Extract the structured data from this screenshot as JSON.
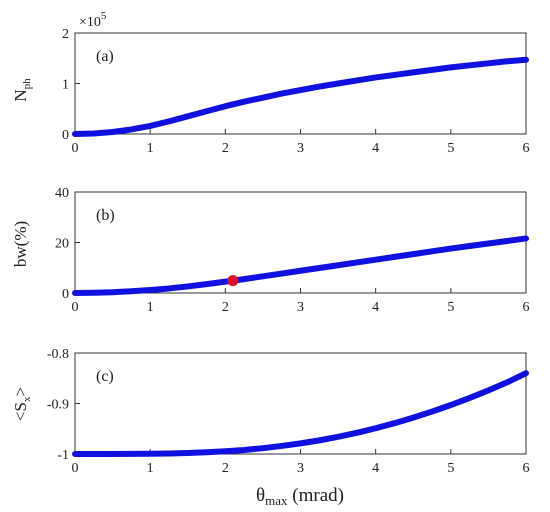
{
  "chart_data": [
    {
      "type": "line",
      "panel_label": "(a)",
      "ylabel": "N",
      "ylabel_sub": "ph",
      "y_multiplier": "×10",
      "y_multiplier_exp": "5",
      "xlim": [
        0,
        6
      ],
      "ylim": [
        0,
        2
      ],
      "xticks": [
        0,
        1,
        2,
        3,
        4,
        5,
        6
      ],
      "yticks": [
        0,
        1,
        2
      ],
      "line_color": "#1010e0",
      "grid": false,
      "series": [
        {
          "x": [
            0,
            0.25,
            0.5,
            0.75,
            1.0,
            1.25,
            1.5,
            1.75,
            2.0,
            2.25,
            2.5,
            2.75,
            3.0,
            3.25,
            3.5,
            3.75,
            4.0,
            4.25,
            4.5,
            4.75,
            5.0,
            5.25,
            5.5,
            5.75,
            6.0
          ],
          "y": [
            0.0,
            0.01,
            0.04,
            0.09,
            0.16,
            0.25,
            0.35,
            0.45,
            0.55,
            0.64,
            0.72,
            0.8,
            0.87,
            0.94,
            1.0,
            1.06,
            1.12,
            1.17,
            1.22,
            1.27,
            1.32,
            1.36,
            1.4,
            1.44,
            1.47
          ]
        }
      ]
    },
    {
      "type": "line",
      "panel_label": "(b)",
      "ylabel": "bw(%)",
      "xlim": [
        0,
        6
      ],
      "ylim": [
        0,
        40
      ],
      "xticks": [
        0,
        1,
        2,
        3,
        4,
        5,
        6
      ],
      "yticks": [
        0,
        20,
        40
      ],
      "line_color": "#1010e0",
      "marker_color": "#e01020",
      "grid": false,
      "series": [
        {
          "x": [
            0,
            0.25,
            0.5,
            0.75,
            1.0,
            1.25,
            1.5,
            1.75,
            2.0,
            2.25,
            2.5,
            2.75,
            3.0,
            3.25,
            3.5,
            3.75,
            4.0,
            4.25,
            4.5,
            4.75,
            5.0,
            5.25,
            5.5,
            5.75,
            6.0
          ],
          "y": [
            0.0,
            0.1,
            0.3,
            0.7,
            1.2,
            1.8,
            2.6,
            3.5,
            4.5,
            5.5,
            6.6,
            7.7,
            8.8,
            9.9,
            11.0,
            12.1,
            13.2,
            14.3,
            15.4,
            16.5,
            17.6,
            18.6,
            19.6,
            20.6,
            21.6
          ]
        }
      ],
      "marker": {
        "x": 2.1,
        "y": 4.9
      }
    },
    {
      "type": "line",
      "panel_label": "(c)",
      "ylabel": "<S",
      "ylabel_sub": "x",
      "ylabel_end": ">",
      "xlim": [
        0,
        6
      ],
      "ylim": [
        -1,
        -0.8
      ],
      "xticks": [
        0,
        1,
        2,
        3,
        4,
        5,
        6
      ],
      "yticks": [
        -1,
        -0.9,
        -0.8
      ],
      "ytick_labels": [
        "-1",
        "-0.9",
        "-0.8"
      ],
      "xlabel": "θ",
      "xlabel_sub": "max",
      "xlabel_end": " (mrad)",
      "line_color": "#1010e0",
      "grid": false,
      "series": [
        {
          "x": [
            0,
            0.25,
            0.5,
            0.75,
            1.0,
            1.25,
            1.5,
            1.75,
            2.0,
            2.25,
            2.5,
            2.75,
            3.0,
            3.25,
            3.5,
            3.75,
            4.0,
            4.25,
            4.5,
            4.75,
            5.0,
            5.25,
            5.5,
            5.75,
            6.0
          ],
          "y": [
            -1.0,
            -1.0,
            -1.0,
            -0.9998,
            -0.9995,
            -0.999,
            -0.998,
            -0.9965,
            -0.9945,
            -0.992,
            -0.9885,
            -0.984,
            -0.979,
            -0.973,
            -0.966,
            -0.958,
            -0.949,
            -0.939,
            -0.928,
            -0.916,
            -0.903,
            -0.889,
            -0.874,
            -0.858,
            -0.84
          ]
        }
      ]
    }
  ]
}
